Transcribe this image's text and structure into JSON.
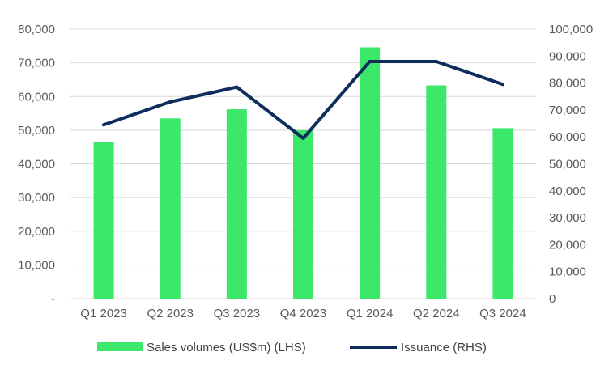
{
  "chart_data": {
    "type": "bar",
    "title": "",
    "categories": [
      "Q1 2023",
      "Q2 2023",
      "Q3 2023",
      "Q4 2023",
      "Q1 2024",
      "Q2 2024",
      "Q3 2024"
    ],
    "series": [
      {
        "name": "Sales volumes (US$m) (LHS)",
        "type": "bar",
        "axis": "left",
        "color": "#3ce869",
        "values": [
          46500,
          53500,
          56200,
          50000,
          74600,
          63300,
          50600
        ]
      },
      {
        "name": "Issuance (RHS)",
        "type": "line",
        "axis": "right",
        "color": "#0f2d5c",
        "values": [
          64500,
          73000,
          78500,
          59500,
          88000,
          88000,
          79500
        ]
      }
    ],
    "left_axis": {
      "ylim": [
        0,
        80000
      ],
      "ticks": [
        0,
        10000,
        20000,
        30000,
        40000,
        50000,
        60000,
        70000,
        80000
      ],
      "tick_labels": [
        "-",
        "10,000",
        "20,000",
        "30,000",
        "40,000",
        "50,000",
        "60,000",
        "70,000",
        "80,000"
      ]
    },
    "right_axis": {
      "ylim": [
        0,
        100000
      ],
      "ticks": [
        0,
        10000,
        20000,
        30000,
        40000,
        50000,
        60000,
        70000,
        80000,
        90000,
        100000
      ],
      "tick_labels": [
        "0",
        "10,000",
        "20,000",
        "30,000",
        "40,000",
        "50,000",
        "60,000",
        "70,000",
        "80,000",
        "90,000",
        "100,000"
      ]
    },
    "grid": true,
    "legend_position": "bottom"
  }
}
